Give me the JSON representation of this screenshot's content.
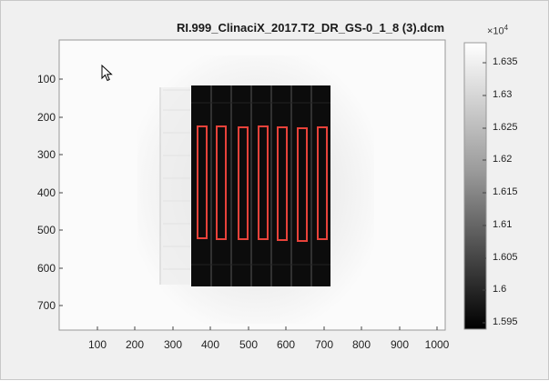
{
  "window": {
    "title": "RI.999_ClinaciX_2017.T2_DR_GS-0_1_8 (3).dcm"
  },
  "axes": {
    "y_ticks": [
      "100",
      "200",
      "300",
      "400",
      "500",
      "600",
      "700"
    ],
    "x_ticks": [
      "100",
      "200",
      "300",
      "400",
      "500",
      "600",
      "700",
      "800",
      "900",
      "1000"
    ]
  },
  "colorbar": {
    "exponent_base": "×10",
    "exponent_power": "4",
    "ticks": [
      "1.635",
      "1.63",
      "1.625",
      "1.62",
      "1.615",
      "1.61",
      "1.605",
      "1.6",
      "1.595"
    ]
  },
  "overlay": {
    "roi_count": 7,
    "roi_color": "#e8423a"
  },
  "icons": {
    "cursor": "mouse-pointer-icon"
  }
}
